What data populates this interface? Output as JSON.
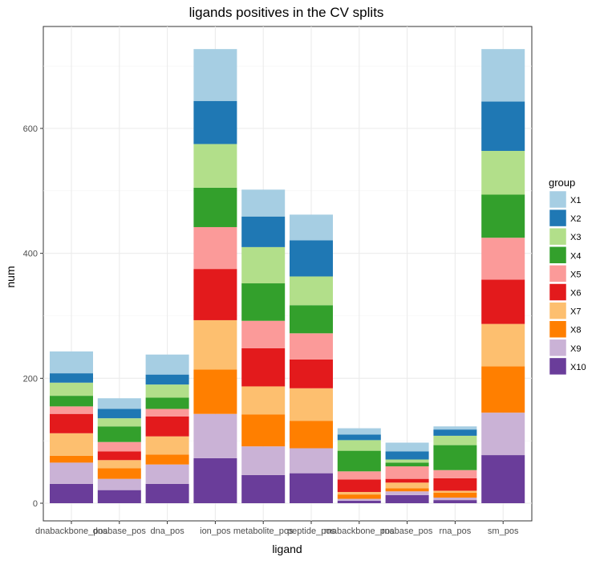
{
  "chart_data": {
    "type": "bar",
    "stacked": true,
    "title": "ligands positives in the CV splits",
    "xlabel": "ligand",
    "ylabel": "num",
    "ylim": [
      0,
      740
    ],
    "yticks": [
      0,
      200,
      400,
      600
    ],
    "grid": true,
    "legend": {
      "title": "group",
      "placement": "right"
    },
    "categories": [
      "dnabackbone_pos",
      "dnabase_pos",
      "dna_pos",
      "ion_pos",
      "metabolite_pos",
      "peptide_pos",
      "rnabackbone_pos",
      "rnabase_pos",
      "rna_pos",
      "sm_pos"
    ],
    "series": [
      {
        "name": "X10",
        "color": "#6a3d9a",
        "values": [
          31,
          21,
          31,
          72,
          45,
          48,
          4,
          13,
          5,
          77
        ]
      },
      {
        "name": "X9",
        "color": "#cab2d6",
        "values": [
          34,
          18,
          31,
          71,
          46,
          40,
          3,
          6,
          4,
          68
        ]
      },
      {
        "name": "X8",
        "color": "#ff7f00",
        "values": [
          11,
          17,
          16,
          71,
          51,
          44,
          7,
          5,
          8,
          74
        ]
      },
      {
        "name": "X7",
        "color": "#fdbf6f",
        "values": [
          36,
          13,
          29,
          79,
          45,
          52,
          4,
          9,
          3,
          68
        ]
      },
      {
        "name": "X6",
        "color": "#e31a1c",
        "values": [
          31,
          14,
          32,
          82,
          61,
          46,
          20,
          6,
          20,
          71
        ]
      },
      {
        "name": "X5",
        "color": "#fb9a99",
        "values": [
          12,
          15,
          12,
          67,
          44,
          42,
          13,
          20,
          13,
          67
        ]
      },
      {
        "name": "X4",
        "color": "#33a02c",
        "values": [
          17,
          25,
          18,
          63,
          60,
          45,
          33,
          6,
          40,
          69
        ]
      },
      {
        "name": "X3",
        "color": "#b2df8a",
        "values": [
          21,
          13,
          21,
          70,
          58,
          46,
          17,
          5,
          15,
          70
        ]
      },
      {
        "name": "X2",
        "color": "#1f78b4",
        "values": [
          15,
          15,
          16,
          69,
          49,
          58,
          9,
          13,
          10,
          79
        ]
      },
      {
        "name": "X1",
        "color": "#a6cee3",
        "values": [
          35,
          17,
          32,
          83,
          43,
          41,
          10,
          14,
          5,
          84
        ]
      }
    ],
    "legend_order": [
      "X1",
      "X2",
      "X3",
      "X4",
      "X5",
      "X6",
      "X7",
      "X8",
      "X9",
      "X10"
    ]
  }
}
